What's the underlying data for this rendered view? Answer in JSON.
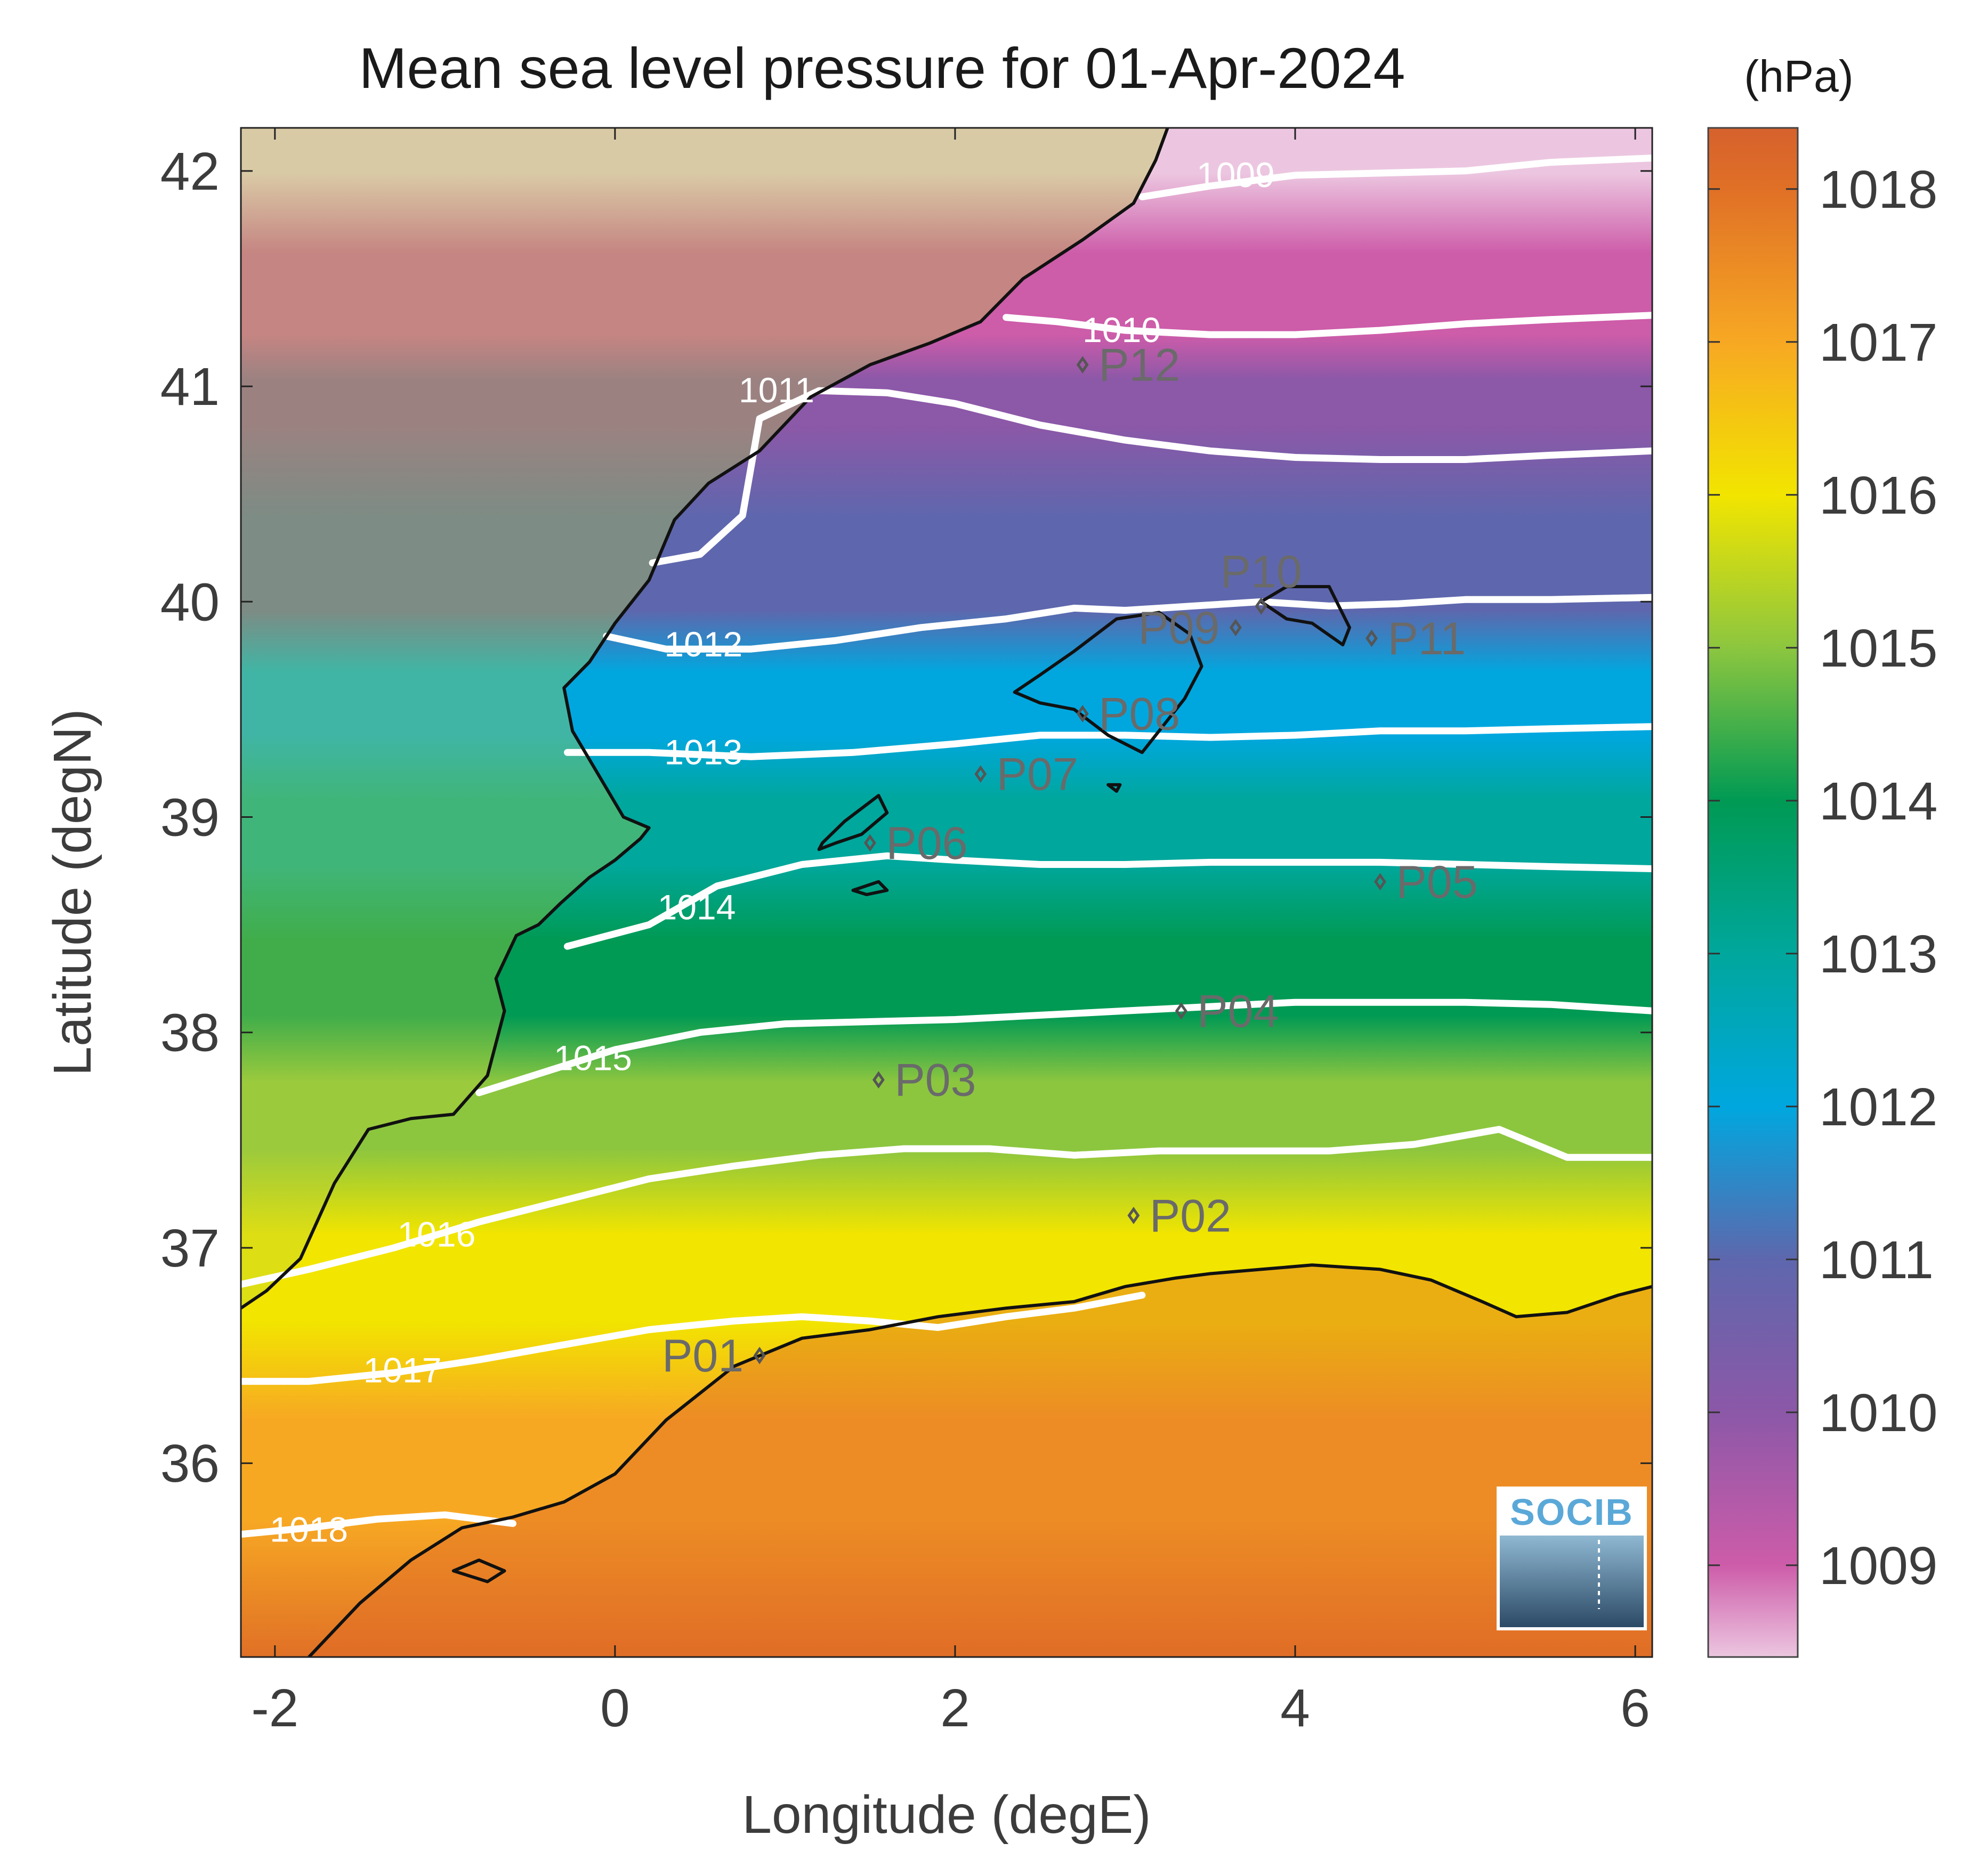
{
  "title": "Mean sea level pressure for 01-Apr-2024",
  "x_axis": {
    "label": "Longitude (degE)",
    "range": [
      -2.2,
      6.1
    ],
    "ticks": [
      {
        "value": -2,
        "label": "-2"
      },
      {
        "value": 0,
        "label": "0"
      },
      {
        "value": 2,
        "label": "2"
      },
      {
        "value": 4,
        "label": "4"
      },
      {
        "value": 6,
        "label": "6"
      }
    ]
  },
  "y_axis": {
    "label": "Latitude (degN)",
    "range": [
      35.1,
      42.2
    ],
    "ticks": [
      {
        "value": 36,
        "label": "36"
      },
      {
        "value": 37,
        "label": "37"
      },
      {
        "value": 38,
        "label": "38"
      },
      {
        "value": 39,
        "label": "39"
      },
      {
        "value": 40,
        "label": "40"
      },
      {
        "value": 41,
        "label": "41"
      },
      {
        "value": 42,
        "label": "42"
      }
    ]
  },
  "colorbar": {
    "unit": "(hPa)",
    "range": [
      1008.4,
      1018.4
    ],
    "ticks": [
      {
        "value": 1009,
        "label": "1009"
      },
      {
        "value": 1010,
        "label": "1010"
      },
      {
        "value": 1011,
        "label": "1011"
      },
      {
        "value": 1012,
        "label": "1012"
      },
      {
        "value": 1013,
        "label": "1013"
      },
      {
        "value": 1014,
        "label": "1014"
      },
      {
        "value": 1015,
        "label": "1015"
      },
      {
        "value": 1016,
        "label": "1016"
      },
      {
        "value": 1017,
        "label": "1017"
      },
      {
        "value": 1018,
        "label": "1018"
      }
    ],
    "colors": [
      {
        "value": 1008.4,
        "color": "#ecc6e0"
      },
      {
        "value": 1009.0,
        "color": "#cd5ca9"
      },
      {
        "value": 1010.0,
        "color": "#8c58a8"
      },
      {
        "value": 1011.0,
        "color": "#5e67ad"
      },
      {
        "value": 1012.0,
        "color": "#00a7df"
      },
      {
        "value": 1013.0,
        "color": "#00a79c"
      },
      {
        "value": 1014.0,
        "color": "#009a54"
      },
      {
        "value": 1015.0,
        "color": "#8cc63f"
      },
      {
        "value": 1016.0,
        "color": "#f2e500"
      },
      {
        "value": 1017.0,
        "color": "#f7a823"
      },
      {
        "value": 1018.0,
        "color": "#e07026"
      },
      {
        "value": 1018.4,
        "color": "#d6612d"
      }
    ]
  },
  "chart_data": {
    "type": "heatmap",
    "variable": "Mean sea level pressure",
    "unit": "hPa",
    "contours": [
      {
        "level": 1009,
        "label": "1009",
        "lon": [
          3.1,
          3.5,
          4.0,
          4.5,
          5.0,
          5.5,
          6.1
        ],
        "lat": [
          41.88,
          41.93,
          41.98,
          41.99,
          42.0,
          42.04,
          42.06
        ],
        "label_lon": 3.65,
        "label_lat": 41.98
      },
      {
        "level": 1010,
        "label": "1010",
        "lon": [
          2.3,
          2.6,
          3.0,
          3.5,
          4.0,
          4.5,
          5.0,
          5.5,
          6.1
        ],
        "lat": [
          41.32,
          41.3,
          41.26,
          41.24,
          41.24,
          41.26,
          41.29,
          41.31,
          41.33
        ],
        "label_lon": 2.98,
        "label_lat": 41.26
      },
      {
        "level": 1011,
        "label": "1011",
        "lon": [
          0.22,
          0.5,
          0.75,
          0.85,
          1.2,
          1.6,
          2.0,
          2.5,
          3.0,
          3.5,
          4.0,
          4.5,
          5.0,
          5.5,
          6.1
        ],
        "lat": [
          40.18,
          40.22,
          40.4,
          40.85,
          40.98,
          40.97,
          40.92,
          40.82,
          40.75,
          40.7,
          40.67,
          40.66,
          40.66,
          40.68,
          40.7
        ],
        "label_lon": 0.95,
        "label_lat": 40.98
      },
      {
        "level": 1012,
        "label": "1012",
        "lon": [
          -0.05,
          0.3,
          0.8,
          1.3,
          1.8,
          2.3,
          2.7,
          3.0,
          3.4,
          3.8,
          4.2,
          4.6,
          5.0,
          5.5,
          6.1
        ],
        "lat": [
          39.84,
          39.78,
          39.78,
          39.82,
          39.88,
          39.92,
          39.97,
          39.96,
          39.98,
          40.0,
          39.98,
          39.99,
          40.01,
          40.01,
          40.02
        ],
        "label_lon": 0.52,
        "label_lat": 39.8
      },
      {
        "level": 1013,
        "label": "1013",
        "lon": [
          -0.28,
          0.2,
          0.8,
          1.4,
          2.0,
          2.5,
          3.0,
          3.5,
          4.0,
          4.5,
          5.0,
          5.5,
          6.1
        ],
        "lat": [
          39.3,
          39.3,
          39.28,
          39.3,
          39.34,
          39.38,
          39.38,
          39.37,
          39.38,
          39.4,
          39.4,
          39.41,
          39.42
        ],
        "label_lon": 0.52,
        "label_lat": 39.3
      },
      {
        "level": 1014,
        "label": "1014",
        "lon": [
          -0.28,
          0.2,
          0.6,
          1.1,
          1.6,
          2.0,
          2.5,
          3.0,
          3.5,
          4.0,
          4.5,
          5.0,
          5.5,
          6.1
        ],
        "lat": [
          38.4,
          38.5,
          38.68,
          38.78,
          38.82,
          38.8,
          38.78,
          38.78,
          38.79,
          38.79,
          38.79,
          38.78,
          38.77,
          38.76
        ],
        "label_lon": 0.48,
        "label_lat": 38.58
      },
      {
        "level": 1015,
        "label": "1015",
        "lon": [
          -0.8,
          -0.4,
          0.0,
          0.5,
          1.0,
          1.5,
          2.0,
          2.5,
          3.0,
          3.5,
          4.0,
          4.5,
          5.0,
          5.5,
          6.1
        ],
        "lat": [
          37.72,
          37.82,
          37.92,
          38.0,
          38.04,
          38.05,
          38.06,
          38.08,
          38.1,
          38.12,
          38.14,
          38.14,
          38.14,
          38.13,
          38.1
        ],
        "label_lon": -0.13,
        "label_lat": 37.88
      },
      {
        "level": 1016,
        "label": "1016",
        "lon": [
          -2.2,
          -1.8,
          -1.3,
          -0.8,
          -0.3,
          0.2,
          0.7,
          1.2,
          1.7,
          2.2,
          2.7,
          3.2,
          3.7,
          4.2,
          4.7,
          5.2,
          5.6,
          6.1
        ],
        "lat": [
          36.83,
          36.9,
          37.0,
          37.12,
          37.22,
          37.32,
          37.38,
          37.43,
          37.46,
          37.46,
          37.43,
          37.45,
          37.45,
          37.45,
          37.48,
          37.55,
          37.42,
          37.42
        ],
        "label_lon": -1.05,
        "label_lat": 37.06
      },
      {
        "level": 1017,
        "label": "1017",
        "lon": [
          -2.2,
          -1.8,
          -1.3,
          -0.8,
          -0.3,
          0.2,
          0.7,
          1.1,
          1.5,
          1.9,
          2.3,
          2.7,
          3.1
        ],
        "lat": [
          36.38,
          36.38,
          36.42,
          36.48,
          36.55,
          36.62,
          36.66,
          36.68,
          36.66,
          36.63,
          36.68,
          36.72,
          36.78
        ],
        "label_lon": -1.25,
        "label_lat": 36.43
      },
      {
        "level": 1018,
        "label": "1018",
        "lon": [
          -2.2,
          -1.8,
          -1.4,
          -1.0,
          -0.6
        ],
        "lat": [
          35.67,
          35.7,
          35.74,
          35.76,
          35.72
        ],
        "label_lon": -1.8,
        "label_lat": 35.69
      }
    ],
    "stations": [
      {
        "id": "P01",
        "lon": 0.85,
        "lat": 36.5,
        "label_side": "left"
      },
      {
        "id": "P02",
        "lon": 3.05,
        "lat": 37.15,
        "label_side": "right"
      },
      {
        "id": "P03",
        "lon": 1.55,
        "lat": 37.78,
        "label_side": "right"
      },
      {
        "id": "P04",
        "lon": 3.33,
        "lat": 38.1,
        "label_side": "right"
      },
      {
        "id": "P05",
        "lon": 4.5,
        "lat": 38.7,
        "label_side": "right"
      },
      {
        "id": "P06",
        "lon": 1.5,
        "lat": 38.88,
        "label_side": "right"
      },
      {
        "id": "P07",
        "lon": 2.15,
        "lat": 39.2,
        "label_side": "right"
      },
      {
        "id": "P08",
        "lon": 2.75,
        "lat": 39.48,
        "label_side": "right"
      },
      {
        "id": "P09",
        "lon": 3.65,
        "lat": 39.88,
        "label_side": "left"
      },
      {
        "id": "P10",
        "lon": 3.8,
        "lat": 39.98,
        "label_side": "above"
      },
      {
        "id": "P11",
        "lon": 4.45,
        "lat": 39.83,
        "label_side": "right"
      },
      {
        "id": "P12",
        "lon": 2.75,
        "lat": 41.1,
        "label_side": "right"
      }
    ]
  },
  "coastlines": {
    "iberia": {
      "lon": [
        -2.2,
        -2.05,
        -1.85,
        -1.65,
        -1.45,
        -1.2,
        -0.95,
        -0.75,
        -0.65,
        -0.7,
        -0.58,
        -0.45,
        -0.32,
        -0.15,
        0.0,
        0.15,
        0.2,
        0.05,
        -0.1,
        -0.25,
        -0.3,
        -0.15,
        0.0,
        0.2,
        0.35,
        0.55,
        0.85,
        1.15,
        1.5,
        1.85,
        2.15,
        2.4,
        2.75,
        3.05,
        3.18,
        3.25
      ],
      "lat": [
        36.72,
        36.8,
        36.95,
        37.3,
        37.55,
        37.6,
        37.62,
        37.8,
        38.1,
        38.25,
        38.45,
        38.5,
        38.6,
        38.72,
        38.8,
        38.9,
        38.95,
        39.0,
        39.2,
        39.4,
        39.6,
        39.72,
        39.9,
        40.1,
        40.38,
        40.55,
        40.7,
        40.95,
        41.1,
        41.2,
        41.3,
        41.5,
        41.68,
        41.85,
        42.05,
        42.2
      ]
    },
    "africa": {
      "lon": [
        -1.8,
        -1.5,
        -1.2,
        -0.9,
        -0.6,
        -0.3,
        0.0,
        0.3,
        0.7,
        1.1,
        1.5,
        1.9,
        2.3,
        2.7,
        3.0,
        3.3,
        3.5,
        3.8,
        4.1,
        4.5,
        4.8,
        5.1,
        5.3,
        5.6,
        5.9,
        6.1
      ],
      "lat": [
        35.1,
        35.35,
        35.55,
        35.7,
        35.75,
        35.82,
        35.95,
        36.2,
        36.45,
        36.58,
        36.62,
        36.68,
        36.72,
        36.75,
        36.82,
        36.86,
        36.88,
        36.9,
        36.92,
        36.9,
        36.85,
        36.75,
        36.68,
        36.7,
        36.78,
        36.82
      ]
    },
    "mallorca": {
      "lon": [
        2.35,
        2.5,
        2.7,
        2.95,
        3.2,
        3.38,
        3.45,
        3.35,
        3.2,
        3.1,
        2.9,
        2.7,
        2.5,
        2.35
      ],
      "lat": [
        39.58,
        39.66,
        39.77,
        39.92,
        39.95,
        39.85,
        39.7,
        39.55,
        39.4,
        39.3,
        39.38,
        39.5,
        39.53,
        39.58
      ]
    },
    "menorca": {
      "lon": [
        3.8,
        3.95,
        4.2,
        4.32,
        4.28,
        4.1,
        3.95,
        3.8
      ],
      "lat": [
        40.0,
        40.07,
        40.07,
        39.88,
        39.8,
        39.9,
        39.92,
        40.0
      ]
    },
    "ibiza": {
      "lon": [
        1.22,
        1.35,
        1.55,
        1.6,
        1.45,
        1.3,
        1.2,
        1.22
      ],
      "lat": [
        38.88,
        38.98,
        39.1,
        39.02,
        38.92,
        38.88,
        38.85,
        38.88
      ]
    },
    "formentera": {
      "lon": [
        1.4,
        1.55,
        1.6,
        1.48,
        1.4
      ],
      "lat": [
        38.66,
        38.7,
        38.66,
        38.64,
        38.66
      ]
    },
    "cabrera": {
      "lon": [
        2.9,
        2.97,
        2.95,
        2.9
      ],
      "lat": [
        39.15,
        39.15,
        39.12,
        39.15
      ]
    },
    "alboran_island": {
      "lon": [
        -0.95,
        -0.8,
        -0.65,
        -0.75,
        -0.95
      ],
      "lat": [
        35.5,
        35.55,
        35.5,
        35.45,
        35.5
      ]
    }
  },
  "logo": {
    "text": "SOCIB"
  }
}
